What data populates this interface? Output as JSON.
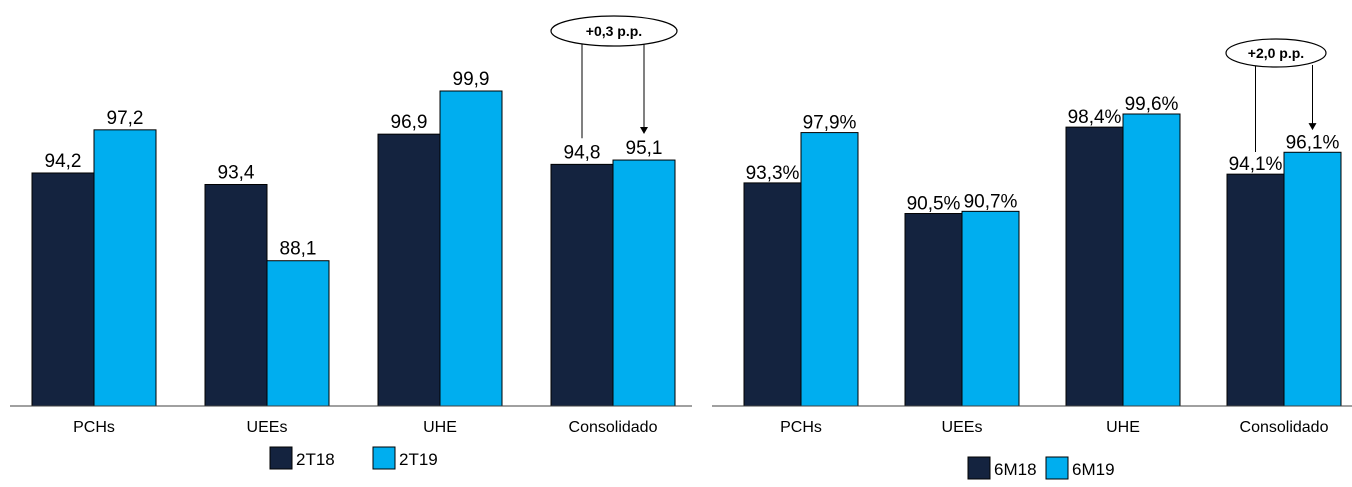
{
  "chart_data": [
    {
      "type": "bar",
      "categories": [
        "PCHs",
        "UEEs",
        "UHE",
        "Consolidado"
      ],
      "series": [
        {
          "name": "2T18",
          "values": [
            94.2,
            93.4,
            96.9,
            94.8
          ],
          "labels": [
            "94,2",
            "93,4",
            "96,9",
            "94,8"
          ],
          "color": "#14233f"
        },
        {
          "name": "2T19",
          "values": [
            97.2,
            88.1,
            99.9,
            95.1
          ],
          "labels": [
            "97,2",
            "88,1",
            "99,9",
            "95,1"
          ],
          "color": "#00aeef"
        }
      ],
      "annotation": {
        "text": "+0,3 p.p.",
        "category": "Consolidado"
      },
      "legend_position": "bottom",
      "grid": false
    },
    {
      "type": "bar",
      "categories": [
        "PCHs",
        "UEEs",
        "UHE",
        "Consolidado"
      ],
      "series": [
        {
          "name": "6M18",
          "values": [
            93.3,
            90.5,
            98.4,
            94.1
          ],
          "labels": [
            "93,3%",
            "90,5%",
            "98,4%",
            "94,1%"
          ],
          "color": "#14233f"
        },
        {
          "name": "6M19",
          "values": [
            97.9,
            90.7,
            99.6,
            96.1
          ],
          "labels": [
            "97,9%",
            "90,7%",
            "99,6%",
            "96,1%"
          ],
          "color": "#00aeef"
        }
      ],
      "annotation": {
        "text": "+2,0 p.p.",
        "category": "Consolidado"
      },
      "legend_position": "bottom",
      "grid": false
    }
  ]
}
